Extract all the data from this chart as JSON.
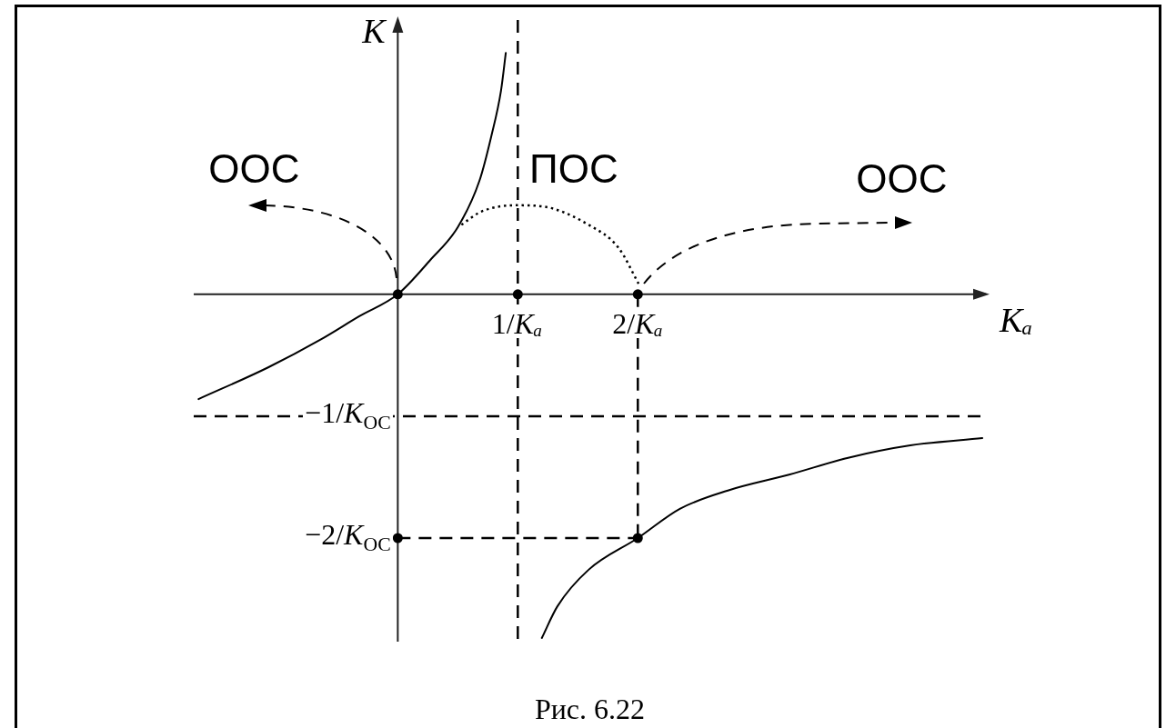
{
  "chart_data": {
    "type": "line",
    "xlabel": "Kₐ",
    "ylabel": "K",
    "xlim": [
      -1.7,
      4.9
    ],
    "ylim": [
      -2.85,
      2.25
    ],
    "xticks": [
      {
        "value": 1,
        "label": "1/Kₐ"
      },
      {
        "value": 2,
        "label": "2/Kₐ"
      }
    ],
    "yticks": [
      {
        "value": -1,
        "label": "−1/K$_{ОС}$"
      },
      {
        "value": -2,
        "label": "−2/K$_{ОС}$"
      }
    ],
    "series": [
      {
        "color": "#000000",
        "x": [
          -1.66,
          -1.08,
          -0.64,
          -0.32,
          0,
          0.27,
          0.5,
          0.68,
          0.78,
          0.86,
          0.9
        ],
        "values": [
          -0.86,
          -0.6,
          -0.37,
          -0.18,
          0,
          0.28,
          0.55,
          0.93,
          1.3,
          1.67,
          1.98
        ]
      },
      {
        "color": "#000000",
        "x": [
          1.2,
          1.33,
          1.59,
          2,
          2.35,
          2.75,
          3.26,
          3.76,
          4.27,
          4.87
        ],
        "values": [
          -2.82,
          -2.56,
          -2.26,
          -2,
          -1.76,
          -1.61,
          -1.48,
          -1.34,
          -1.24,
          -1.18
        ]
      },
      {
        "color": "#000000",
        "line_style": "dotted",
        "x": [
          0.53,
          0.7,
          0.99,
          1.21,
          1.59,
          1.84,
          2.01
        ],
        "values": [
          0.57,
          0.68,
          0.73,
          0.72,
          0.57,
          0.38,
          0.08
        ]
      },
      {
        "color": "#000000",
        "line_style": "dashed",
        "x": [
          2,
          2
        ],
        "values": [
          0,
          -2
        ]
      },
      {
        "color": "#000000",
        "line_style": "dashed",
        "x": [
          0,
          2
        ],
        "values": [
          -2,
          -2
        ]
      },
      {
        "type": "scatter",
        "marker": "circle",
        "color": "#000000",
        "x": [
          0,
          1,
          2,
          0,
          2
        ],
        "values": [
          0,
          0,
          0,
          -2,
          -2
        ]
      }
    ],
    "ref_lines": [
      {
        "axis": "x",
        "value": 1,
        "line_style": "dashed",
        "color": "#000000"
      },
      {
        "axis": "y",
        "value": -1,
        "line_style": "dashed",
        "color": "#000000"
      }
    ],
    "annotations": [
      "ООС",
      "ПОС",
      "ООС",
      "Рис. 6.22"
    ]
  }
}
